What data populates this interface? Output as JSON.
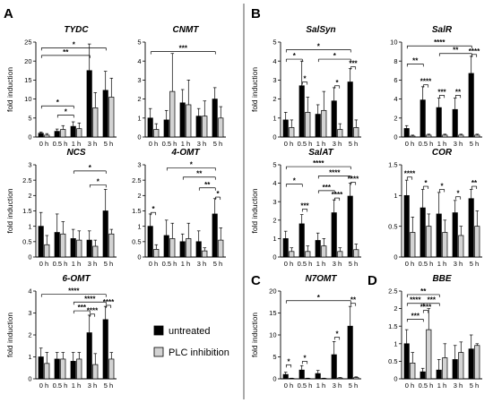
{
  "panel_labels": [
    "A",
    "B",
    "C",
    "D"
  ],
  "legend": {
    "items": [
      {
        "label": "untreated",
        "color": "#000000"
      },
      {
        "label": "PLC inhibition",
        "color": "#d3d3d3"
      }
    ]
  },
  "chart_data": [
    {
      "type": "bar",
      "title": "TYDC",
      "panel": "A",
      "categories": [
        "0 h",
        "0.5 h",
        "1 h",
        "3 h",
        "5 h"
      ],
      "ylabel": "fold induction",
      "ylim": [
        0,
        25
      ],
      "yticks": [
        0,
        5,
        10,
        15,
        20,
        25
      ],
      "series": [
        {
          "name": "untreated",
          "values": [
            1,
            1.5,
            2.8,
            17.5,
            12.3
          ],
          "errors": [
            0.3,
            0.6,
            1.2,
            7,
            5
          ]
        },
        {
          "name": "PLC inhibition",
          "values": [
            0.5,
            2,
            2.2,
            7.7,
            10.5
          ],
          "errors": [
            0.4,
            1,
            1.5,
            4,
            5
          ]
        }
      ],
      "annotations": [
        {
          "label": "*",
          "from": 0,
          "to": 4,
          "level": 23.5
        },
        {
          "label": "**",
          "from": 0,
          "to": 3,
          "level": 21.5
        },
        {
          "label": "*",
          "from": 0,
          "to": 2,
          "level": 8.2
        },
        {
          "label": "*",
          "from": 1,
          "to": 2,
          "level": 5.8
        }
      ]
    },
    {
      "type": "bar",
      "title": "CNMT",
      "panel": "A",
      "categories": [
        "0 h",
        "0.5 h",
        "1 h",
        "3 h",
        "5 h"
      ],
      "ylabel": "",
      "ylim": [
        0,
        5
      ],
      "yticks": [
        0,
        1,
        2,
        3,
        4,
        5
      ],
      "series": [
        {
          "name": "untreated",
          "values": [
            1,
            0.9,
            1.8,
            1.1,
            2
          ],
          "errors": [
            0.5,
            0.5,
            0.7,
            0.4,
            0.6
          ]
        },
        {
          "name": "PLC inhibition",
          "values": [
            0.4,
            2.4,
            1.7,
            1.1,
            1
          ],
          "errors": [
            0.3,
            2,
            1.3,
            0.8,
            0.6
          ]
        }
      ],
      "annotations": [
        {
          "label": "***",
          "from": 0,
          "to": 4,
          "level": 4.5
        }
      ]
    },
    {
      "type": "bar",
      "title": "SalSyn",
      "panel": "B",
      "categories": [
        "0 h",
        "0.5 h",
        "1 h",
        "3 h",
        "5 h"
      ],
      "ylabel": "fold induction",
      "ylim": [
        0,
        5
      ],
      "yticks": [
        0,
        1,
        2,
        3,
        4,
        5
      ],
      "series": [
        {
          "name": "untreated",
          "values": [
            0.9,
            2.7,
            1.2,
            1.9,
            2.9
          ],
          "errors": [
            0.4,
            1.3,
            0.5,
            0.7,
            0.7
          ]
        },
        {
          "name": "PLC inhibition",
          "values": [
            0.5,
            1.3,
            1.4,
            0.4,
            0.5
          ],
          "errors": [
            0.4,
            0.8,
            1,
            0.3,
            0.4
          ]
        }
      ],
      "annotations": [
        {
          "label": "*",
          "from": 0,
          "to": 4,
          "level": 4.6
        },
        {
          "label": "*",
          "from": 0,
          "to": 1,
          "level": 4.1
        },
        {
          "label": "*",
          "from": 2,
          "to": 4,
          "level": 4.1
        },
        {
          "label": "*",
          "from": 1,
          "to": 1,
          "level": 2.9
        },
        {
          "label": "*",
          "from": 3,
          "to": 3,
          "level": 2.7
        },
        {
          "label": "***",
          "from": 4,
          "to": 4,
          "level": 3.7
        }
      ]
    },
    {
      "type": "bar",
      "title": "SalR",
      "panel": "B",
      "categories": [
        "0 h",
        "0.5 h",
        "1 h",
        "3 h",
        "5 h"
      ],
      "ylabel": "",
      "ylim": [
        0,
        10
      ],
      "yticks": [
        0,
        2,
        4,
        6,
        8,
        10
      ],
      "series": [
        {
          "name": "untreated",
          "values": [
            0.9,
            3.9,
            3.1,
            2.9,
            6.7
          ],
          "errors": [
            0.3,
            1.4,
            1,
            1.2,
            1.8
          ]
        },
        {
          "name": "PLC inhibition",
          "values": [
            0.1,
            0.2,
            0.2,
            0.2,
            0.2
          ],
          "errors": [
            0.1,
            0.1,
            0.1,
            0.1,
            0.1
          ]
        }
      ],
      "annotations": [
        {
          "label": "****",
          "from": 0,
          "to": 4,
          "level": 9.6
        },
        {
          "label": "**",
          "from": 2,
          "to": 4,
          "level": 8.8
        },
        {
          "label": "**",
          "from": 0,
          "to": 1,
          "level": 7.7
        },
        {
          "label": "****",
          "from": 1,
          "to": 1,
          "level": 5.5
        },
        {
          "label": "***",
          "from": 2,
          "to": 2,
          "level": 4.4
        },
        {
          "label": "**",
          "from": 3,
          "to": 3,
          "level": 4.4
        },
        {
          "label": "****",
          "from": 4,
          "to": 4,
          "level": 8.7
        }
      ]
    },
    {
      "type": "bar",
      "title": "NCS",
      "panel": "A",
      "categories": [
        "0 h",
        "0.5 h",
        "1 h",
        "3 h",
        "5 h"
      ],
      "ylabel": "fold induction",
      "ylim": [
        0,
        3
      ],
      "yticks": [
        0,
        0.5,
        1,
        1.5,
        2,
        2.5,
        3
      ],
      "series": [
        {
          "name": "untreated",
          "values": [
            1,
            0.8,
            0.6,
            0.55,
            1.5
          ],
          "errors": [
            0.45,
            0.6,
            0.3,
            0.3,
            0.7
          ]
        },
        {
          "name": "PLC inhibition",
          "values": [
            0.4,
            0.75,
            0.55,
            0.35,
            0.75
          ],
          "errors": [
            0.3,
            0.4,
            0.3,
            0.2,
            0.15
          ]
        }
      ],
      "annotations": [
        {
          "label": "*",
          "from": 2,
          "to": 4,
          "level": 2.8
        },
        {
          "label": "*",
          "from": 3,
          "to": 4,
          "level": 2.35
        }
      ]
    },
    {
      "type": "bar",
      "title": "4-OMT",
      "panel": "A",
      "categories": [
        "0 h",
        "0.5 h",
        "1 h",
        "3 h",
        "5 h"
      ],
      "ylabel": "",
      "ylim": [
        0,
        3
      ],
      "yticks": [
        0,
        0.5,
        1,
        1.5,
        2,
        2.5,
        3
      ],
      "series": [
        {
          "name": "untreated",
          "values": [
            1,
            0.7,
            0.5,
            0.5,
            1.4
          ],
          "errors": [
            0.4,
            0.5,
            0.25,
            0.35,
            0.5
          ]
        },
        {
          "name": "PLC inhibition",
          "values": [
            0.25,
            0.6,
            0.6,
            0.2,
            0.55
          ],
          "errors": [
            0.15,
            0.5,
            0.5,
            0.1,
            0.4
          ]
        }
      ],
      "annotations": [
        {
          "label": "*",
          "from": 1,
          "to": 4,
          "level": 2.9
        },
        {
          "label": "**",
          "from": 2,
          "to": 4,
          "level": 2.6
        },
        {
          "label": "**",
          "from": 3,
          "to": 4,
          "level": 2.25
        },
        {
          "label": "*",
          "from": 0,
          "to": 0,
          "level": 1.45
        },
        {
          "label": "*",
          "from": 4,
          "to": 4,
          "level": 1.95
        }
      ]
    },
    {
      "type": "bar",
      "title": "SalAT",
      "panel": "B",
      "categories": [
        "0 h",
        "0.5 h",
        "1 h",
        "3 h",
        "5 h"
      ],
      "ylabel": "fold induction",
      "ylim": [
        0,
        5
      ],
      "yticks": [
        0,
        1,
        2,
        3,
        4,
        5
      ],
      "series": [
        {
          "name": "untreated",
          "values": [
            1,
            1.8,
            0.9,
            2.4,
            3.3
          ],
          "errors": [
            0.4,
            0.5,
            0.4,
            0.7,
            0.7
          ]
        },
        {
          "name": "PLC inhibition",
          "values": [
            0.3,
            0.3,
            0.6,
            0.3,
            0.4
          ],
          "errors": [
            0.2,
            0.3,
            0.4,
            0.2,
            0.3
          ]
        }
      ],
      "annotations": [
        {
          "label": "****",
          "from": 0,
          "to": 4,
          "level": 4.9
        },
        {
          "label": "****",
          "from": 2,
          "to": 4,
          "level": 4.4
        },
        {
          "label": "*",
          "from": 0,
          "to": 1,
          "level": 3.95
        },
        {
          "label": "***",
          "from": 2,
          "to": 3,
          "level": 3.6
        },
        {
          "label": "***",
          "from": 1,
          "to": 1,
          "level": 2.6
        },
        {
          "label": "****",
          "from": 3,
          "to": 3,
          "level": 3.2
        },
        {
          "label": "****",
          "from": 4,
          "to": 4,
          "level": 4.05
        }
      ]
    },
    {
      "type": "bar",
      "title": "COR",
      "panel": "B",
      "categories": [
        "0 h",
        "0.5 h",
        "1 h",
        "3 h",
        "5 h"
      ],
      "ylabel": "",
      "ylim": [
        0,
        1.5
      ],
      "yticks": [
        0,
        0.5,
        1,
        1.5
      ],
      "series": [
        {
          "name": "untreated",
          "values": [
            1,
            0.8,
            0.7,
            0.72,
            0.95
          ],
          "errors": [
            0.25,
            0.3,
            0.35,
            0.2,
            0.15
          ]
        },
        {
          "name": "PLC inhibition",
          "values": [
            0.4,
            0.5,
            0.4,
            0.35,
            0.5
          ],
          "errors": [
            0.25,
            0.2,
            0.2,
            0.15,
            0.25
          ]
        }
      ],
      "annotations": [
        {
          "label": "****",
          "from": 0,
          "to": 0,
          "level": 1.3
        },
        {
          "label": "*",
          "from": 1,
          "to": 1,
          "level": 1.15
        },
        {
          "label": "*",
          "from": 2,
          "to": 2,
          "level": 1.1
        },
        {
          "label": "*",
          "from": 3,
          "to": 3,
          "level": 0.98
        },
        {
          "label": "**",
          "from": 4,
          "to": 4,
          "level": 1.15
        }
      ]
    },
    {
      "type": "bar",
      "title": "6-OMT",
      "panel": "A",
      "categories": [
        "0 h",
        "0.5 h",
        "1 h",
        "3 h",
        "5 h"
      ],
      "ylabel": "fold induction",
      "ylim": [
        0,
        4
      ],
      "yticks": [
        0,
        1,
        2,
        3,
        4
      ],
      "series": [
        {
          "name": "untreated",
          "values": [
            1,
            0.9,
            0.8,
            2.1,
            2.7
          ],
          "errors": [
            0.4,
            0.3,
            0.4,
            0.8,
            0.6
          ]
        },
        {
          "name": "PLC inhibition",
          "values": [
            0.7,
            0.9,
            0.9,
            0.65,
            0.9
          ],
          "errors": [
            0.5,
            0.3,
            0.3,
            0.5,
            0.3
          ]
        }
      ],
      "annotations": [
        {
          "label": "****",
          "from": 0,
          "to": 4,
          "level": 3.85
        },
        {
          "label": "****",
          "from": 2,
          "to": 4,
          "level": 3.5
        },
        {
          "label": "***",
          "from": 2,
          "to": 3,
          "level": 3.1
        },
        {
          "label": "****",
          "from": 3,
          "to": 3,
          "level": 2.95
        },
        {
          "label": "****",
          "from": 4,
          "to": 4,
          "level": 3.35
        }
      ]
    },
    {
      "type": "bar",
      "title": "N7OMT",
      "panel": "C",
      "categories": [
        "0 h",
        "0.5 h",
        "1 h",
        "3 h",
        "5 h"
      ],
      "ylabel": "fold induction",
      "ylim": [
        0,
        20
      ],
      "yticks": [
        0,
        5,
        10,
        15,
        20
      ],
      "series": [
        {
          "name": "untreated",
          "values": [
            1,
            2,
            1.2,
            5.5,
            12
          ],
          "errors": [
            0.5,
            1,
            0.7,
            3,
            4.5
          ]
        },
        {
          "name": "PLC inhibition",
          "values": [
            0.1,
            0.1,
            0.1,
            0.2,
            0.3
          ],
          "errors": [
            0.05,
            0.05,
            0.05,
            0.1,
            0.15
          ]
        }
      ],
      "annotations": [
        {
          "label": "*",
          "from": 0,
          "to": 4,
          "level": 17.8
        },
        {
          "label": "*",
          "from": 0,
          "to": 0,
          "level": 3.2
        },
        {
          "label": "*",
          "from": 1,
          "to": 1,
          "level": 4
        },
        {
          "label": "*",
          "from": 3,
          "to": 3,
          "level": 9.5
        },
        {
          "label": "**",
          "from": 4,
          "to": 4,
          "level": 17.2
        }
      ]
    },
    {
      "type": "bar",
      "title": "BBE",
      "panel": "D",
      "categories": [
        "0 h",
        "0.5 h",
        "1 h",
        "3 h",
        "5 h"
      ],
      "ylabel": "",
      "ylim": [
        0,
        2.5
      ],
      "yticks": [
        0,
        0.5,
        1,
        1.5,
        2,
        2.5
      ],
      "series": [
        {
          "name": "untreated",
          "values": [
            1,
            0.2,
            0.25,
            0.55,
            0.85
          ],
          "errors": [
            0.4,
            0.1,
            0.3,
            0.4,
            0.4
          ]
        },
        {
          "name": "PLC inhibition",
          "values": [
            0.45,
            1.4,
            0.6,
            0.75,
            0.95
          ],
          "errors": [
            0.3,
            0.6,
            0.4,
            0.3,
            0.05
          ]
        }
      ],
      "annotations": [
        {
          "label": "**",
          "from": 0,
          "to": 2,
          "level": 2.4
        },
        {
          "label": "****",
          "from": 0,
          "to": 1,
          "level": 2.15
        },
        {
          "label": "***",
          "from": 1,
          "to": 2,
          "level": 2.15
        },
        {
          "label": "****",
          "from": 1,
          "to": 1,
          "level": 1.95
        },
        {
          "label": "***",
          "from": 0,
          "to": 1,
          "level": 1.7
        }
      ]
    }
  ]
}
